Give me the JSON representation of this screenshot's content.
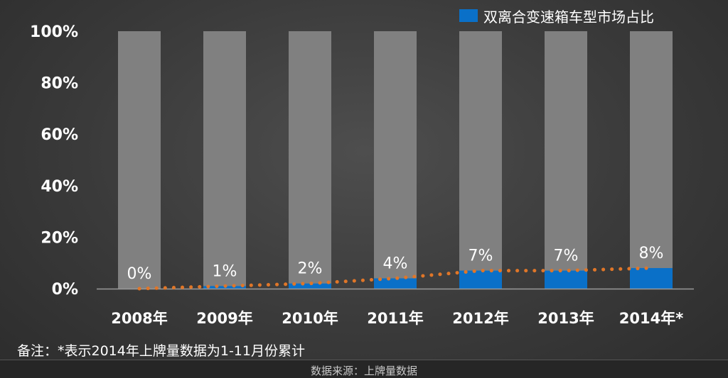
{
  "colors": {
    "bar_bg": "#808080",
    "bar_value": "#0a70c8",
    "trend": "#e07628",
    "text": "#ffffff",
    "axis": "#9a9a9a"
  },
  "legend": {
    "label": "双离合变速箱车型市场占比"
  },
  "note": "备注：*表示2014年上牌量数据为1-11月份累计",
  "source": "数据来源：上牌量数据",
  "chart_data": {
    "type": "bar",
    "categories": [
      "2008年",
      "2009年",
      "2010年",
      "2011年",
      "2012年",
      "2013年",
      "2014年*"
    ],
    "series": [
      {
        "name": "双离合变速箱车型市场占比",
        "values": [
          0,
          1,
          2,
          4,
          7,
          7,
          8
        ]
      }
    ],
    "data_labels": [
      "0%",
      "1%",
      "2%",
      "4%",
      "7%",
      "7%",
      "8%"
    ],
    "y_ticks": [
      "0%",
      "20%",
      "40%",
      "60%",
      "80%",
      "100%"
    ],
    "ylim": [
      0,
      100
    ],
    "background_bar_value": 100,
    "trend_line": "dotted",
    "legend_position": "top-right",
    "grid": false
  }
}
